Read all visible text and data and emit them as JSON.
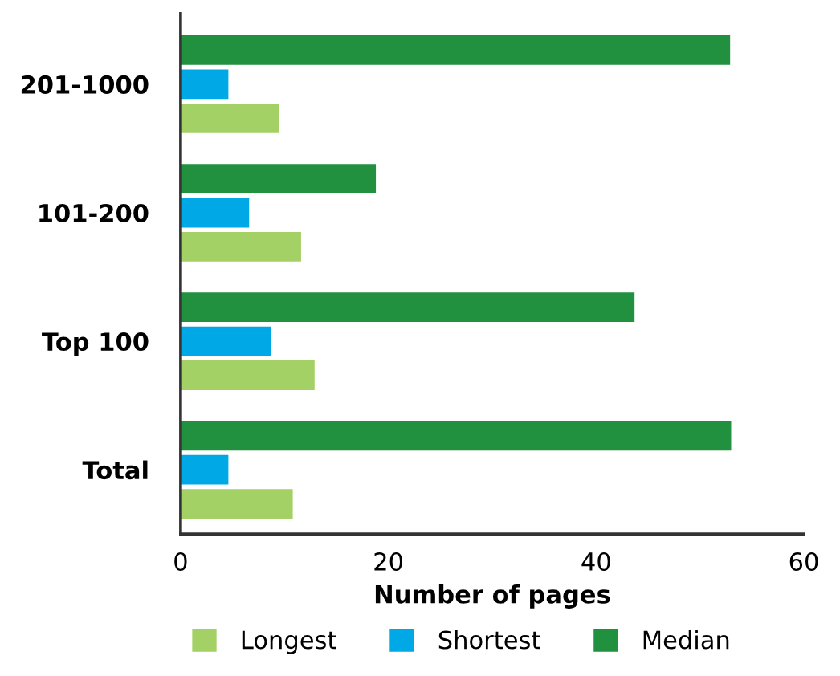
{
  "chart_data": {
    "type": "bar",
    "orientation": "horizontal",
    "categories": [
      "201-1000",
      "101-200",
      "Top 100",
      "Total"
    ],
    "series": [
      {
        "name": "Longest",
        "color": "#a3d165",
        "values": [
          9.5,
          11.6,
          12.9,
          10.8
        ]
      },
      {
        "name": "Shortest",
        "color": "#00a9e6",
        "values": [
          4.6,
          6.6,
          8.7,
          4.6
        ]
      },
      {
        "name": "Median",
        "color": "#21903f",
        "values": [
          52.9,
          18.8,
          43.7,
          53
        ]
      }
    ],
    "xlabel": "Number of pages",
    "xlim": [
      0,
      60
    ],
    "xticks": [
      0,
      20,
      40,
      60
    ],
    "grid": false,
    "legend": "bottom"
  }
}
